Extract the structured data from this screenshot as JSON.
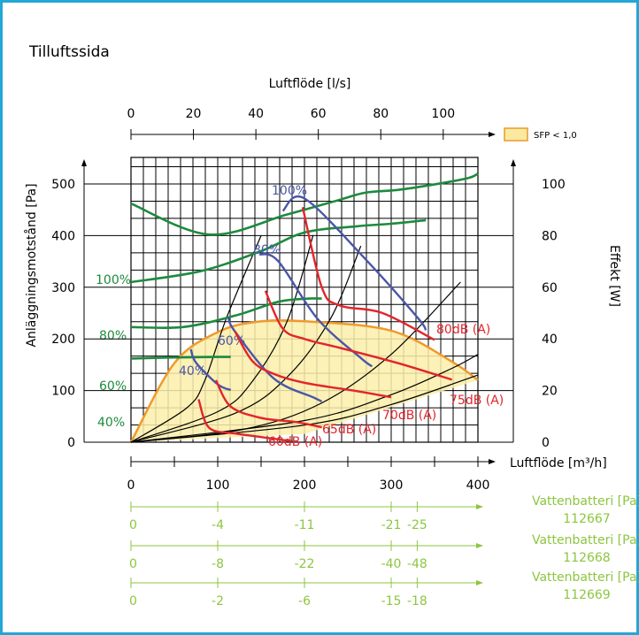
{
  "title": "Tilluftssida",
  "legend": {
    "label": "SFP < 1,0",
    "color": "#fbe9a0",
    "border": "#e89a28"
  },
  "colors": {
    "frame": "#22a7d6",
    "fan": "#1d8a3e",
    "power": "#1d8a3e",
    "pct": "#4a57a8",
    "sound": "#e3242b",
    "sfp": "#f09a2a",
    "sfp_fill": "#fbeeaa",
    "water": "#8cc63f",
    "sys": "#000000"
  },
  "top_axis": {
    "label": "Luftflöde [l/s]",
    "ticks": [
      "0",
      "20",
      "40",
      "60",
      "80",
      "100"
    ]
  },
  "bottom_axis": {
    "label": "Luftflöde [m³/h]",
    "ticks": [
      "0",
      "100",
      "200",
      "300",
      "400"
    ]
  },
  "left_axis": {
    "label": "Anläggningsmotstånd [Pa]",
    "ticks": [
      "0",
      "100",
      "200",
      "300",
      "400",
      "500"
    ]
  },
  "right_axis": {
    "label": "Effekt [W]",
    "ticks": [
      "0",
      "20",
      "40",
      "60",
      "80",
      "100"
    ]
  },
  "water_axes": [
    {
      "label1": "Vattenbatteri [Pa]",
      "label2": "112667",
      "ticks": [
        "0",
        "-4",
        "-11",
        "-21",
        "-25"
      ]
    },
    {
      "label1": "Vattenbatteri [Pa]",
      "label2": "112668",
      "ticks": [
        "0",
        "-8",
        "-22",
        "-40",
        "-48"
      ]
    },
    {
      "label1": "Vattenbatteri [Pa]",
      "label2": "112669",
      "ticks": [
        "0",
        "-2",
        "-6",
        "-15",
        "-18"
      ]
    }
  ],
  "chart_data": {
    "type": "line",
    "title": "Tilluftssida",
    "xlabel": "Luftflöde [m³/h]",
    "ylabel": "Anläggningsmotstånd [Pa]",
    "xlim": [
      0,
      400
    ],
    "ylim": [
      0,
      500
    ],
    "secondary_x": {
      "label": "Luftflöde [l/s]",
      "ticks": [
        0,
        20,
        40,
        60,
        80,
        100
      ]
    },
    "secondary_y": {
      "label": "Effekt [W]",
      "range": [
        0,
        100
      ]
    },
    "fan_curves": [
      {
        "name": "100%",
        "x": [
          0,
          90,
          180,
          240,
          270,
          310,
          360,
          390,
          400
        ],
        "y": [
          462,
          402,
          441,
          469,
          483,
          489,
          502,
          512,
          520
        ]
      },
      {
        "name": "80%",
        "x": [
          0,
          80,
          150,
          200,
          260,
          300,
          340
        ],
        "y": [
          310,
          331,
          370,
          406,
          418,
          423,
          430
        ]
      },
      {
        "name": "60%",
        "x": [
          0,
          60,
          120,
          170,
          205,
          220
        ],
        "y": [
          223,
          223,
          245,
          272,
          278,
          278
        ]
      },
      {
        "name": "40%",
        "x": [
          0,
          50,
          100,
          115
        ],
        "y": [
          162,
          164,
          165,
          165
        ]
      }
    ],
    "pct_lines": [
      {
        "name": "100%",
        "x": [
          175,
          200,
          270,
          330,
          340
        ],
        "y": [
          448,
          472,
          355,
          242,
          217
        ]
      },
      {
        "name": "80%",
        "x": [
          148,
          170,
          215,
          265,
          278
        ],
        "y": [
          364,
          350,
          239,
          163,
          147
        ]
      },
      {
        "name": "60%",
        "x": [
          112,
          120,
          165,
          210,
          220
        ],
        "y": [
          243,
          214,
          123,
          87,
          79
        ]
      },
      {
        "name": "40%",
        "x": [
          69,
          75,
          100,
          115
        ],
        "y": [
          180,
          154,
          112,
          101
        ]
      }
    ],
    "sound_lines": [
      {
        "name": "80dB (A)",
        "x": [
          198,
          220,
          240,
          290,
          350
        ],
        "y": [
          455,
          300,
          265,
          250,
          198
        ]
      },
      {
        "name": "75dB (A)",
        "x": [
          155,
          175,
          200,
          240,
          310,
          370
        ],
        "y": [
          293,
          220,
          200,
          183,
          152,
          121
        ]
      },
      {
        "name": "70dB (A)",
        "x": [
          120,
          140,
          165,
          200,
          260,
          300
        ],
        "y": [
          214,
          157,
          132,
          115,
          99,
          87
        ]
      },
      {
        "name": "65dB (A)",
        "x": [
          98,
          115,
          150,
          190,
          220
        ],
        "y": [
          120,
          69,
          47,
          39,
          29
        ]
      },
      {
        "name": "60dB (A)",
        "x": [
          78,
          90,
          120,
          150,
          185
        ],
        "y": [
          83,
          28,
          17,
          10,
          2
        ]
      }
    ],
    "system_curves": [
      {
        "x": [
          0,
          64,
          85,
          110,
          150
        ],
        "y": [
          0,
          66,
          119,
          240,
          400
        ]
      },
      {
        "x": [
          0,
          100,
          140,
          180,
          210
        ],
        "y": [
          0,
          59,
          118,
          234,
          401
        ]
      },
      {
        "x": [
          0,
          120,
          180,
          230,
          265
        ],
        "y": [
          0,
          56,
          126,
          239,
          380
        ]
      },
      {
        "x": [
          0,
          130,
          220,
          300,
          380
        ],
        "y": [
          0,
          25,
          76,
          170,
          310
        ]
      },
      {
        "x": [
          0,
          200,
          300,
          370,
          400
        ],
        "y": [
          0,
          42,
          92,
          143,
          170
        ]
      },
      {
        "x": [
          0,
          200,
          300,
          400
        ],
        "y": [
          0,
          33,
          73,
          130
        ]
      }
    ],
    "sfp_region": {
      "x": [
        0,
        50,
        100,
        145,
        200,
        300,
        370,
        400
      ],
      "y": [
        0,
        153,
        213,
        233,
        234,
        216,
        156,
        120
      ],
      "lower": {
        "x": [
          0,
          200,
          400
        ],
        "y": [
          0,
          16,
          120
        ]
      }
    }
  }
}
